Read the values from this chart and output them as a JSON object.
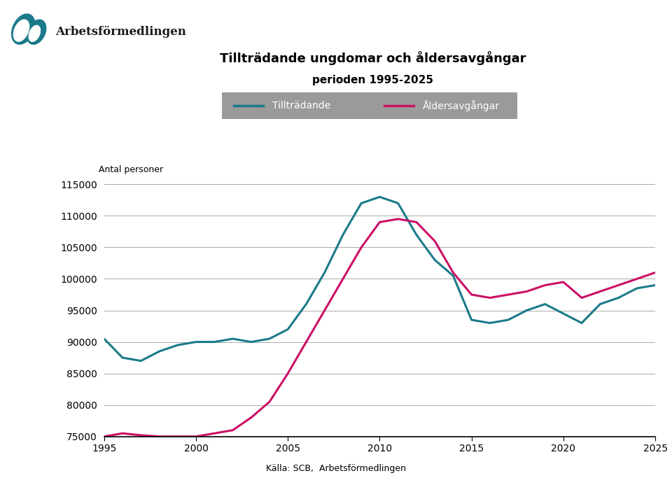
{
  "title_line1": "Tillträdande ungdomar och åldersavgångar",
  "title_line2": "perioden 1995-2025",
  "ylabel": "Antal personer",
  "xlabel_source": "Källa: SCB,  Arbetsförmedlingen",
  "legend_entries": [
    "Tillträdande",
    "Åldersavgångar"
  ],
  "teal_color": "#1B7A8A",
  "pink_color": "#CC1066",
  "background_color": "#ffffff",
  "ylim": [
    75000,
    115000
  ],
  "yticks": [
    75000,
    80000,
    85000,
    90000,
    95000,
    100000,
    105000,
    110000,
    115000
  ],
  "xticks": [
    1995,
    2000,
    2005,
    2010,
    2015,
    2020,
    2025
  ],
  "tillträdande_x": [
    1995,
    1996,
    1997,
    1998,
    1999,
    2000,
    2001,
    2002,
    2003,
    2004,
    2005,
    2006,
    2007,
    2008,
    2009,
    2010,
    2011,
    2012,
    2013,
    2014,
    2015,
    2016,
    2017,
    2018,
    2019,
    2020,
    2021,
    2022,
    2023,
    2024,
    2025
  ],
  "tillträdande_y": [
    90500,
    87500,
    87000,
    88500,
    89500,
    90000,
    90000,
    90500,
    90000,
    90500,
    92000,
    96000,
    101000,
    107000,
    112000,
    113000,
    112000,
    107000,
    103000,
    100500,
    93500,
    93000,
    93500,
    95000,
    96000,
    94500,
    93000,
    96000,
    97000,
    98500,
    99000
  ],
  "åldersavgångar_x": [
    1995,
    1996,
    1997,
    1998,
    1999,
    2000,
    2001,
    2002,
    2003,
    2004,
    2005,
    2006,
    2007,
    2008,
    2009,
    2010,
    2011,
    2012,
    2013,
    2014,
    2015,
    2016,
    2017,
    2018,
    2019,
    2020,
    2021,
    2022,
    2023,
    2024,
    2025
  ],
  "åldersavgångar_y": [
    75000,
    75500,
    75200,
    75000,
    75000,
    75000,
    75500,
    76000,
    78000,
    80500,
    85000,
    90000,
    95000,
    100000,
    105000,
    109000,
    109500,
    109000,
    106000,
    101000,
    97500,
    97000,
    97500,
    98000,
    99000,
    99500,
    97000,
    98000,
    99000,
    100000,
    101000
  ],
  "logo_text": "Arbetsförmedlingen",
  "logo_color": "#1B7A8A"
}
